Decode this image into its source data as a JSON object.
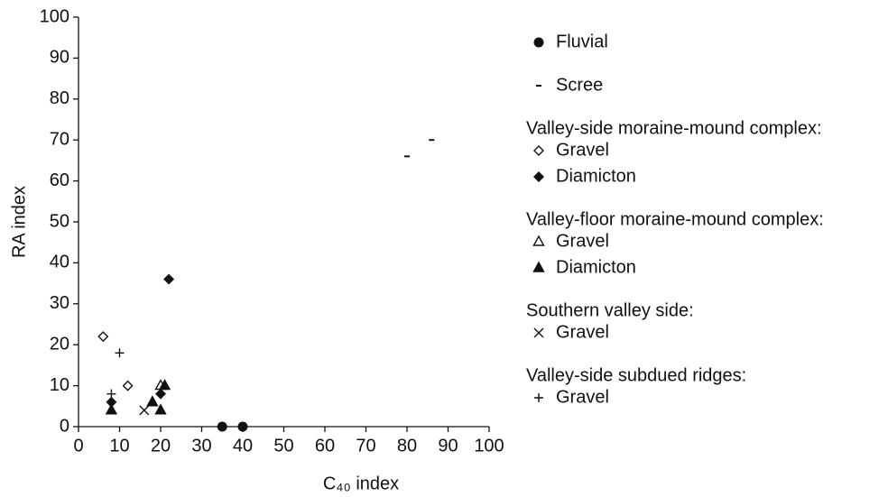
{
  "chart_data": {
    "type": "scatter",
    "xlabel": "C₄₀ index",
    "ylabel": "RA index",
    "xlim": [
      0,
      100
    ],
    "ylim": [
      0,
      100
    ],
    "xticks": [
      0,
      10,
      20,
      30,
      40,
      50,
      60,
      70,
      80,
      90,
      100
    ],
    "yticks": [
      0,
      10,
      20,
      30,
      40,
      50,
      60,
      70,
      80,
      90,
      100
    ],
    "grid": false,
    "groups": [
      {
        "series": [
          {
            "name": "Fluvial",
            "marker": "circle",
            "color": "#111",
            "x": [
              35,
              40
            ],
            "y": [
              0,
              0
            ]
          }
        ]
      },
      {
        "series": [
          {
            "name": "Scree",
            "marker": "dash",
            "color": "#111",
            "x": [
              80,
              86
            ],
            "y": [
              66,
              70
            ]
          }
        ]
      },
      {
        "title": "Valley-side moraine-mound complex:",
        "series": [
          {
            "name": "Gravel",
            "marker": "diamond-open",
            "color": "#111",
            "x": [
              6,
              12
            ],
            "y": [
              22,
              10
            ]
          },
          {
            "name": "Diamicton",
            "marker": "diamond",
            "color": "#111",
            "x": [
              22,
              8,
              20
            ],
            "y": [
              36,
              6,
              8
            ]
          }
        ]
      },
      {
        "title": "Valley-floor moraine-mound complex:",
        "series": [
          {
            "name": "Gravel",
            "marker": "triangle-open",
            "color": "#111",
            "x": [
              20
            ],
            "y": [
              10
            ]
          },
          {
            "name": "Diamicton",
            "marker": "triangle",
            "color": "#111",
            "x": [
              8,
              18,
              20,
              21
            ],
            "y": [
              4,
              6,
              4,
              10
            ]
          }
        ]
      },
      {
        "title": "Southern valley side:",
        "series": [
          {
            "name": "Gravel",
            "marker": "cross",
            "color": "#111",
            "x": [
              16
            ],
            "y": [
              4
            ]
          }
        ]
      },
      {
        "title": "Valley-side subdued ridges:",
        "series": [
          {
            "name": "Gravel",
            "marker": "plus",
            "color": "#111",
            "x": [
              10,
              8
            ],
            "y": [
              18,
              8
            ]
          }
        ]
      }
    ]
  }
}
